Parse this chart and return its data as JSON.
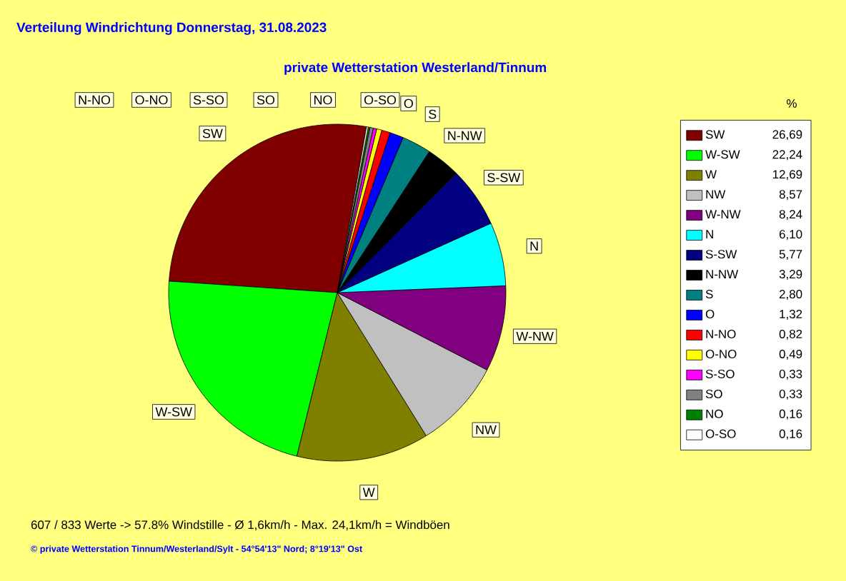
{
  "chart_data": {
    "type": "pie",
    "title": "Verteilung Windrichtung   Donnerstag, 31.08.2023",
    "subtitle": "private Wetterstation Westerland/Tinnum",
    "categories": [
      "SW",
      "W-SW",
      "W",
      "NW",
      "W-NW",
      "N",
      "S-SW",
      "N-NW",
      "S",
      "O",
      "N-NO",
      "O-NO",
      "S-SO",
      "SO",
      "NO",
      "O-SO"
    ],
    "values": [
      26.69,
      22.24,
      12.69,
      8.57,
      8.24,
      6.1,
      5.77,
      3.29,
      2.8,
      1.32,
      0.82,
      0.49,
      0.33,
      0.33,
      0.16,
      0.16
    ],
    "value_labels": [
      "26,69",
      "22,24",
      "12,69",
      "8,57",
      "8,24",
      "6,10",
      "5,77",
      "3,29",
      "2,80",
      "1,32",
      "0,82",
      "0,49",
      "0,33",
      "0,33",
      "0,16",
      "0,16"
    ],
    "colors": [
      "#800000",
      "#00ff00",
      "#808000",
      "#c0c0c0",
      "#800080",
      "#00ffff",
      "#000080",
      "#000000",
      "#008080",
      "#0000ff",
      "#ff0000",
      "#ffff00",
      "#ff00ff",
      "#808080",
      "#008000",
      "#ffffff"
    ],
    "legend": "right",
    "legend_title": "%",
    "annotations": [
      "607 / 833 Werte  -> 57.8% Windstille   -   Ø 1,6km/h  -  Max. 24,1km/h = Windböen",
      "© private Wetterstation Tinnum/Westerland/Sylt   -   54°54'13\" Nord; 8°19'13\" Ost"
    ]
  }
}
